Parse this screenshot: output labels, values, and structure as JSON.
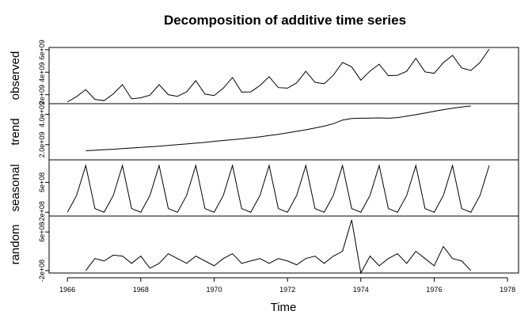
{
  "chart_data": {
    "type": "line",
    "title": "Decomposition of additive time series",
    "xlabel": "Time",
    "xlim": [
      1965.5,
      1978.3
    ],
    "xticks": [
      1966,
      1968,
      1970,
      1972,
      1974,
      1976,
      1978
    ],
    "color": "#000000",
    "x": [
      1966,
      1966.25,
      1966.5,
      1966.75,
      1967,
      1967.25,
      1967.5,
      1967.75,
      1968,
      1968.25,
      1968.5,
      1968.75,
      1969,
      1969.25,
      1969.5,
      1969.75,
      1970,
      1970.25,
      1970.5,
      1970.75,
      1971,
      1971.25,
      1971.5,
      1971.75,
      1972,
      1972.25,
      1972.5,
      1972.75,
      1973,
      1973.25,
      1973.5,
      1973.75,
      1974,
      1974.25,
      1974.5,
      1974.75,
      1975,
      1975.25,
      1975.5,
      1975.75,
      1976,
      1976.25,
      1976.5,
      1976.75,
      1977,
      1977.25,
      1977.5
    ],
    "panels": [
      {
        "ylabel": "observed",
        "ylim": [
          1200000000.0,
          6200000000.0
        ],
        "yticks": [
          {
            "value": 2000000000.0,
            "label": "2e+09"
          },
          {
            "value": 4000000000.0,
            "label": "4e+09"
          },
          {
            "value": 6000000000.0,
            "label": "6e+09"
          }
        ],
        "values": [
          1350000000.0,
          1830000000.0,
          2450000000.0,
          1580000000.0,
          1470000000.0,
          2070000000.0,
          2890000000.0,
          1630000000.0,
          1720000000.0,
          1960000000.0,
          2900000000.0,
          2000000000.0,
          1850000000.0,
          2250000000.0,
          3250000000.0,
          2050000000.0,
          1920000000.0,
          2580000000.0,
          3530000000.0,
          2230000000.0,
          2250000000.0,
          2820000000.0,
          3600000000.0,
          2630000000.0,
          2580000000.0,
          3050000000.0,
          4080000000.0,
          3100000000.0,
          2970000000.0,
          3730000000.0,
          4870000000.0,
          4470000000.0,
          3290000000.0,
          4100000000.0,
          4710000000.0,
          3690000000.0,
          3730000000.0,
          4080000000.0,
          5230000000.0,
          4030000000.0,
          3900000000.0,
          4850000000.0,
          5500000000.0,
          4380000000.0,
          4150000000.0,
          4870000000.0,
          6050000000.0
        ]
      },
      {
        "ylabel": "trend",
        "ylim": [
          1000000000.0,
          4700000000.0
        ],
        "yticks": [
          {
            "value": 2000000000.0,
            "label": "2.0e+09"
          },
          {
            "value": 4000000000.0,
            "label": "4.0e+09"
          }
        ],
        "values": [
          null,
          null,
          1600000000.0,
          1630000000.0,
          1670000000.0,
          1700000000.0,
          1740000000.0,
          1780000000.0,
          1820000000.0,
          1860000000.0,
          1900000000.0,
          1950000000.0,
          2000000000.0,
          2050000000.0,
          2100000000.0,
          2150000000.0,
          2220000000.0,
          2280000000.0,
          2330000000.0,
          2380000000.0,
          2450000000.0,
          2520000000.0,
          2600000000.0,
          2680000000.0,
          2780000000.0,
          2880000000.0,
          2980000000.0,
          3100000000.0,
          3220000000.0,
          3380000000.0,
          3620000000.0,
          3720000000.0,
          3740000000.0,
          3750000000.0,
          3760000000.0,
          3740000000.0,
          3780000000.0,
          3880000000.0,
          3980000000.0,
          4080000000.0,
          4200000000.0,
          4300000000.0,
          4400000000.0,
          4480000000.0,
          4550000000.0,
          null,
          null
        ]
      },
      {
        "ylabel": "seasonal",
        "ylim": [
          -300000000.0,
          1200000000.0
        ],
        "yticks": [
          {
            "value": -200000000.0,
            "label": "-2e+08"
          },
          {
            "value": 600000000.0,
            "label": "6e+08"
          }
        ],
        "values": [
          -200000000.0,
          250000000.0,
          1050000000.0,
          -100000000.0,
          -200000000.0,
          250000000.0,
          1050000000.0,
          -100000000.0,
          -200000000.0,
          250000000.0,
          1050000000.0,
          -100000000.0,
          -200000000.0,
          250000000.0,
          1050000000.0,
          -100000000.0,
          -200000000.0,
          250000000.0,
          1050000000.0,
          -100000000.0,
          -200000000.0,
          250000000.0,
          1050000000.0,
          -100000000.0,
          -200000000.0,
          250000000.0,
          1050000000.0,
          -100000000.0,
          -200000000.0,
          250000000.0,
          1050000000.0,
          -100000000.0,
          -200000000.0,
          250000000.0,
          1050000000.0,
          -100000000.0,
          -200000000.0,
          250000000.0,
          1050000000.0,
          -100000000.0,
          -200000000.0,
          250000000.0,
          1050000000.0,
          -100000000.0,
          -200000000.0,
          250000000.0,
          1050000000.0
        ]
      },
      {
        "ylabel": "random",
        "ylim": [
          -250000000.0,
          930000000.0
        ],
        "yticks": [
          {
            "value": -200000000.0,
            "label": "-2e+08"
          },
          {
            "value": 600000000.0,
            "label": "6e+08"
          }
        ],
        "values": [
          null,
          null,
          -200000000.0,
          50000000.0,
          0,
          120000000.0,
          100000000.0,
          -50000000.0,
          100000000.0,
          -150000000.0,
          -50000000.0,
          150000000.0,
          50000000.0,
          -50000000.0,
          100000000.0,
          0,
          -100000000.0,
          50000000.0,
          150000000.0,
          -50000000.0,
          0,
          50000000.0,
          -50000000.0,
          50000000.0,
          0,
          -80000000.0,
          50000000.0,
          100000000.0,
          -50000000.0,
          100000000.0,
          200000000.0,
          850000000.0,
          -250000000.0,
          100000000.0,
          -100000000.0,
          50000000.0,
          150000000.0,
          -50000000.0,
          200000000.0,
          50000000.0,
          -100000000.0,
          300000000.0,
          50000000.0,
          0,
          -200000000.0,
          null,
          null
        ]
      }
    ]
  }
}
